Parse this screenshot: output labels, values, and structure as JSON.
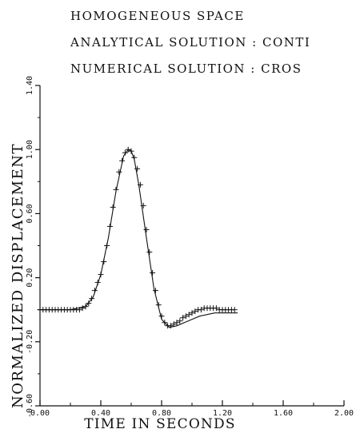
{
  "chart_data": {
    "type": "line",
    "title_lines": [
      "HOMOGENEOUS SPACE",
      "ANALYTICAL SOLUTION : CONTI",
      "NUMERICAL SOLUTION  : CROS"
    ],
    "xlabel": "TIME IN SECONDS",
    "ylabel": "NORMALIZED DISPLACEMENT",
    "xlim": [
      0,
      2.0
    ],
    "ylim": [
      -0.6,
      1.4
    ],
    "x_ticks": [
      "0.00",
      "0.40",
      "0.80",
      "1.20",
      "1.60",
      "2.00"
    ],
    "y_ticks": [
      "-0.60",
      "-0.20",
      "0.20",
      "0.60",
      "1.00",
      "1.40"
    ],
    "series": [
      {
        "style": "continuous",
        "x": [
          0.0,
          0.1,
          0.2,
          0.3,
          0.35,
          0.4,
          0.45,
          0.5,
          0.55,
          0.58,
          0.6,
          0.62,
          0.65,
          0.7,
          0.75,
          0.8,
          0.85,
          0.9,
          0.95,
          1.0,
          1.05,
          1.1,
          1.15,
          1.2,
          1.25,
          1.3
        ],
        "y": [
          0.0,
          0.0,
          0.0,
          0.02,
          0.08,
          0.22,
          0.45,
          0.74,
          0.96,
          1.0,
          0.99,
          0.94,
          0.78,
          0.45,
          0.13,
          -0.06,
          -0.11,
          -0.1,
          -0.08,
          -0.06,
          -0.04,
          -0.03,
          -0.02,
          -0.02,
          -0.02,
          -0.02
        ]
      },
      {
        "style": "crosses",
        "x": [
          0.0,
          0.02,
          0.04,
          0.06,
          0.08,
          0.1,
          0.12,
          0.14,
          0.16,
          0.18,
          0.2,
          0.22,
          0.24,
          0.26,
          0.28,
          0.3,
          0.32,
          0.34,
          0.36,
          0.38,
          0.4,
          0.42,
          0.44,
          0.46,
          0.48,
          0.5,
          0.52,
          0.54,
          0.56,
          0.58,
          0.6,
          0.62,
          0.64,
          0.66,
          0.68,
          0.7,
          0.72,
          0.74,
          0.76,
          0.78,
          0.8,
          0.82,
          0.84,
          0.86,
          0.88,
          0.9,
          0.92,
          0.94,
          0.96,
          0.98,
          1.0,
          1.02,
          1.04,
          1.06,
          1.08,
          1.1,
          1.12,
          1.14,
          1.16,
          1.18,
          1.2,
          1.22,
          1.24,
          1.26,
          1.28
        ],
        "y": [
          0.0,
          0.0,
          0.0,
          0.0,
          0.0,
          0.0,
          0.0,
          0.0,
          0.0,
          0.0,
          0.0,
          0.0,
          0.0,
          0.0,
          0.01,
          0.02,
          0.04,
          0.07,
          0.12,
          0.17,
          0.22,
          0.3,
          0.4,
          0.52,
          0.64,
          0.75,
          0.86,
          0.93,
          0.98,
          1.0,
          0.99,
          0.95,
          0.88,
          0.78,
          0.65,
          0.5,
          0.36,
          0.23,
          0.12,
          0.03,
          -0.04,
          -0.08,
          -0.1,
          -0.1,
          -0.09,
          -0.08,
          -0.07,
          -0.05,
          -0.04,
          -0.03,
          -0.02,
          -0.01,
          0.0,
          0.0,
          0.01,
          0.01,
          0.01,
          0.01,
          0.01,
          0.0,
          0.0,
          0.0,
          0.0,
          0.0,
          0.0
        ]
      }
    ]
  }
}
